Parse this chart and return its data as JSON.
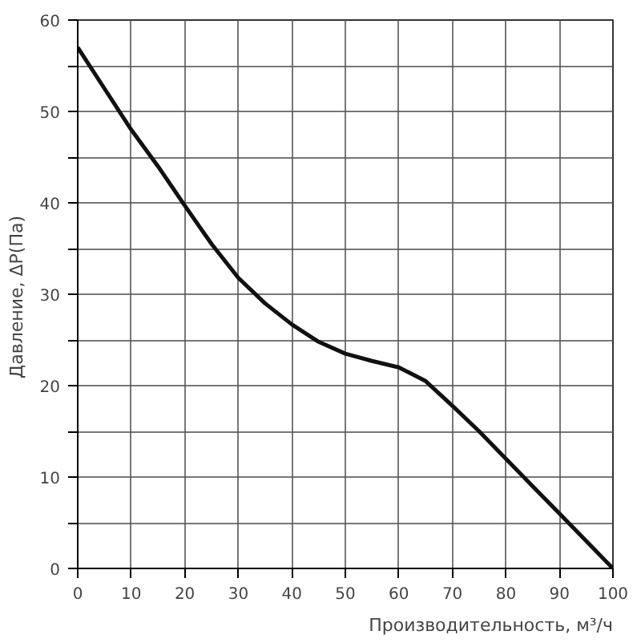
{
  "chart_data": {
    "type": "line",
    "xlabel": "Производительность, м³/ч",
    "ylabel": "Давление,  ΔP(Па)",
    "x": [
      0,
      5,
      10,
      15,
      20,
      25,
      30,
      35,
      40,
      45,
      50,
      55,
      60,
      65,
      70,
      75,
      80,
      85,
      90,
      95,
      100
    ],
    "series": [
      {
        "color": "#111111",
        "values": [
          57,
          52.5,
          48,
          44,
          39.7,
          35.5,
          31.8,
          29,
          26.7,
          24.8,
          23.5,
          22.7,
          22,
          20.5,
          17.8,
          15,
          12,
          9,
          6,
          3,
          0
        ]
      }
    ],
    "xlim": [
      0,
      100
    ],
    "ylim": [
      0,
      60
    ],
    "xticks": [
      0,
      10,
      20,
      30,
      40,
      50,
      60,
      70,
      80,
      90,
      100
    ],
    "yticks": [
      0,
      {
        "value": 5,
        "label": null
      },
      10,
      {
        "value": 15,
        "label": null
      },
      20,
      {
        "value": 25,
        "label": null
      },
      30,
      {
        "value": 35,
        "label": null
      },
      40,
      {
        "value": 45,
        "label": null
      },
      50,
      {
        "value": 55,
        "label": null
      },
      60
    ],
    "grid": true,
    "line_style": "solid",
    "marker": "none"
  }
}
